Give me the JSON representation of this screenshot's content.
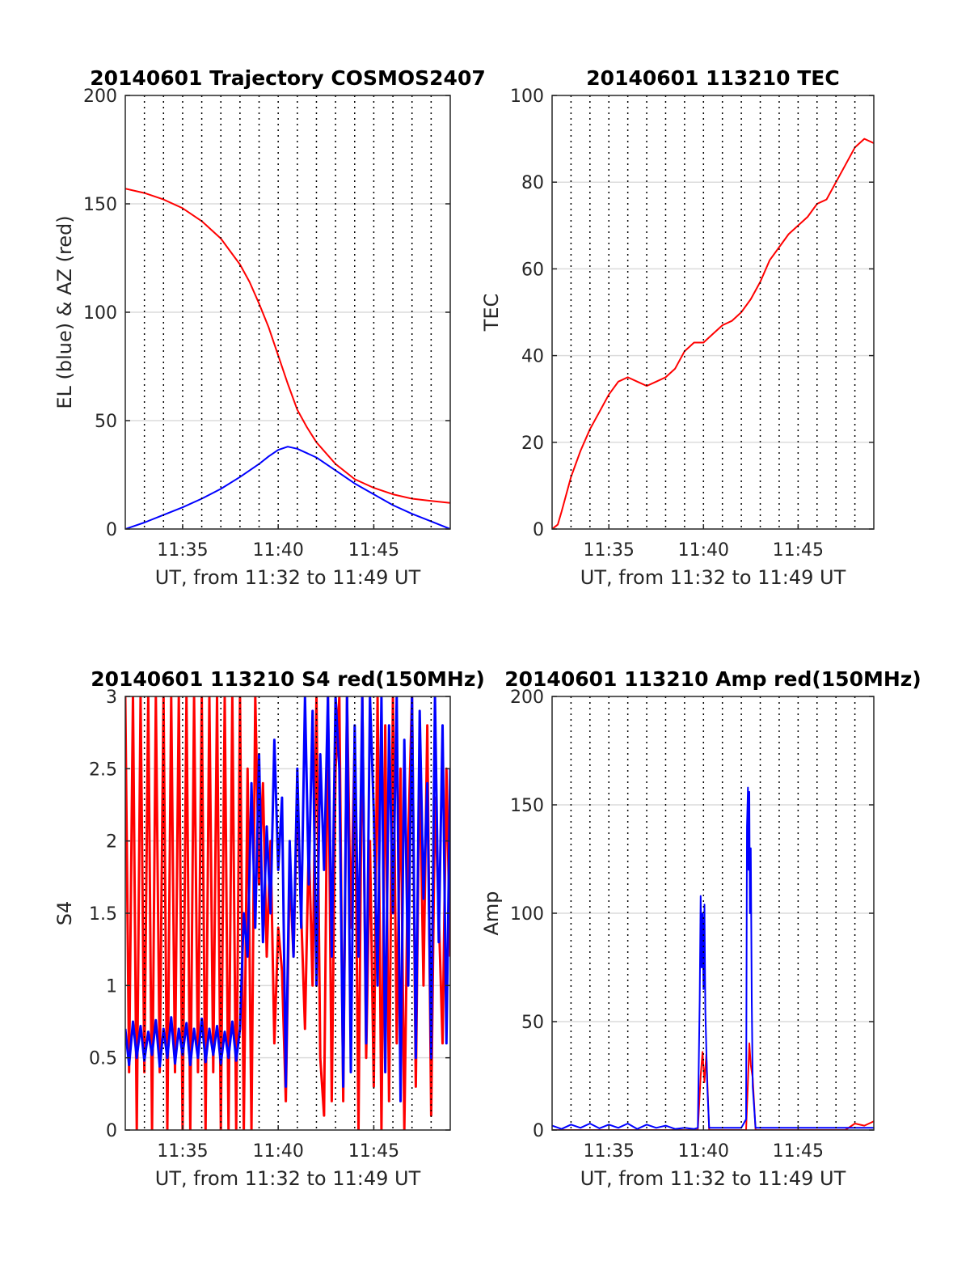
{
  "chart_data": [
    {
      "id": "p1",
      "type": "line",
      "title": "20140601 Trajectory COSMOS2407",
      "xlabel": "UT, from 11:32 to 11:49 UT",
      "ylabel": "EL (blue) & AZ (red)",
      "xlim": [
        0,
        17
      ],
      "ylim": [
        0,
        200
      ],
      "x_ticks": [
        3,
        8,
        13
      ],
      "x_tick_labels": [
        "11:35",
        "11:40",
        "11:45"
      ],
      "y_ticks": [
        0,
        50,
        100,
        150,
        200
      ],
      "y_tick_labels": [
        "0",
        "50",
        "100",
        "150",
        "200"
      ],
      "vgrid_minutes": [
        1,
        2,
        3,
        4,
        5,
        6,
        7,
        8,
        9,
        10,
        11,
        12,
        13,
        14,
        15,
        16
      ],
      "grid": true,
      "series": [
        {
          "name": "AZ",
          "color": "#ff0000",
          "x": [
            0,
            1,
            2,
            3,
            4,
            5,
            6,
            6.5,
            7,
            7.5,
            8,
            8.5,
            9,
            9.5,
            10,
            11,
            12,
            13,
            14,
            15,
            16,
            17
          ],
          "y": [
            157,
            155,
            152,
            148,
            142,
            134,
            122,
            114,
            104,
            93,
            80,
            67,
            55,
            47,
            40,
            30,
            23,
            19,
            16,
            14,
            13,
            12
          ]
        },
        {
          "name": "EL",
          "color": "#0000ff",
          "x": [
            0,
            1,
            2,
            3,
            4,
            5,
            6,
            7,
            7.5,
            8,
            8.5,
            9,
            10,
            11,
            12,
            13,
            14,
            15,
            16,
            17
          ],
          "y": [
            0,
            3,
            6.5,
            10,
            14,
            18.5,
            24,
            30,
            33.5,
            36.5,
            38,
            37,
            33,
            27,
            21,
            16,
            11,
            7,
            3.5,
            0
          ]
        }
      ]
    },
    {
      "id": "p2",
      "type": "line",
      "title": "20140601 113210 TEC",
      "xlabel": "UT, from 11:32 to 11:49 UT",
      "ylabel": "TEC",
      "xlim": [
        0,
        17
      ],
      "ylim": [
        0,
        100
      ],
      "x_ticks": [
        3,
        8,
        13
      ],
      "x_tick_labels": [
        "11:35",
        "11:40",
        "11:45"
      ],
      "y_ticks": [
        0,
        20,
        40,
        60,
        80,
        100
      ],
      "y_tick_labels": [
        "0",
        "20",
        "40",
        "60",
        "80",
        "100"
      ],
      "vgrid_minutes": [
        1,
        2,
        3,
        4,
        5,
        6,
        7,
        8,
        9,
        10,
        11,
        12,
        13,
        14,
        15,
        16
      ],
      "grid": true,
      "series": [
        {
          "name": "TEC",
          "color": "#ff0000",
          "x": [
            0,
            0.3,
            0.5,
            1,
            1.5,
            2,
            2.5,
            3,
            3.5,
            4,
            4.5,
            5,
            5.5,
            6,
            6.5,
            7,
            7.5,
            8,
            8.5,
            9,
            9.5,
            10,
            10.5,
            11,
            11.5,
            12,
            12.5,
            13,
            13.5,
            14,
            14.5,
            15,
            15.5,
            16,
            16.5,
            17
          ],
          "y": [
            0,
            1,
            4,
            12,
            18,
            23,
            27,
            31,
            34,
            35,
            34,
            33,
            34,
            35,
            37,
            41,
            43,
            43,
            45,
            47,
            48,
            50,
            53,
            57,
            62,
            65,
            68,
            70,
            72,
            75,
            76,
            80,
            84,
            88,
            90,
            89
          ]
        }
      ]
    },
    {
      "id": "p3",
      "type": "line",
      "title": "20140601 113210 S4 red(150MHz)",
      "xlabel": "UT, from 11:32 to 11:49 UT",
      "ylabel": "S4",
      "xlim": [
        0,
        17
      ],
      "ylim": [
        0,
        3
      ],
      "x_ticks": [
        3,
        8,
        13
      ],
      "x_tick_labels": [
        "11:35",
        "11:40",
        "11:45"
      ],
      "y_ticks": [
        0,
        0.5,
        1,
        1.5,
        2,
        2.5,
        3
      ],
      "y_tick_labels": [
        "0",
        "0.5",
        "1",
        "1.5",
        "2",
        "2.5",
        "3"
      ],
      "vgrid_minutes": [
        1,
        2,
        3,
        4,
        5,
        6,
        7,
        8,
        9,
        10,
        11,
        12,
        13,
        14,
        15,
        16
      ],
      "grid": true,
      "series": [
        {
          "name": "S4 red",
          "color": "#ff0000",
          "x": [
            0,
            0.2,
            0.4,
            0.6,
            0.8,
            1.0,
            1.2,
            1.4,
            1.6,
            1.8,
            2.0,
            2.2,
            2.4,
            2.6,
            2.8,
            3.0,
            3.2,
            3.4,
            3.6,
            3.8,
            4.0,
            4.2,
            4.4,
            4.6,
            4.8,
            5.0,
            5.2,
            5.4,
            5.6,
            5.8,
            6.0,
            6.2,
            6.4,
            6.6,
            6.8,
            7.0,
            7.2,
            7.4,
            7.6,
            7.8,
            8.0,
            8.2,
            8.4,
            8.6,
            8.8,
            9.0,
            9.2,
            9.4,
            9.6,
            9.8,
            10.0,
            10.2,
            10.4,
            10.6,
            10.8,
            11.0,
            11.2,
            11.4,
            11.6,
            11.8,
            12.0,
            12.2,
            12.4,
            12.6,
            12.8,
            13.0,
            13.2,
            13.4,
            13.6,
            13.8,
            14.0,
            14.2,
            14.4,
            14.6,
            14.8,
            15.0,
            15.2,
            15.4,
            15.6,
            15.8,
            16.0,
            16.2,
            16.4,
            16.6,
            16.8,
            17.0
          ],
          "y": [
            3,
            0.4,
            3,
            0,
            3,
            0.4,
            3,
            0,
            3,
            0.4,
            3,
            0,
            3,
            0.4,
            3,
            0,
            3,
            0,
            3,
            0.4,
            3,
            0,
            3,
            0.4,
            3,
            0,
            3,
            0,
            3,
            0,
            3,
            0,
            2.5,
            0,
            3,
            1.7,
            2.4,
            1.2,
            2,
            0.6,
            1.4,
            1.1,
            0.2,
            1.8,
            1.2,
            2.3,
            1.5,
            0.7,
            2.0,
            1.0,
            3,
            0.5,
            0.1,
            3,
            0.2,
            2.5,
            3,
            0.2,
            3,
            1.4,
            2.7,
            0,
            3,
            0.5,
            2.0,
            0.3,
            3,
            0,
            2.8,
            0.2,
            3,
            0.6,
            2.5,
            0,
            2.0,
            3,
            0.3,
            2.6,
            1.0,
            2.8,
            0.1,
            2.3,
            1.5,
            0.6,
            2.5,
            1.2
          ]
        },
        {
          "name": "S4 blue",
          "color": "#0000ff",
          "x": [
            0,
            0.2,
            0.4,
            0.6,
            0.8,
            1.0,
            1.2,
            1.4,
            1.6,
            1.8,
            2.0,
            2.2,
            2.4,
            2.6,
            2.8,
            3.0,
            3.2,
            3.4,
            3.6,
            3.8,
            4.0,
            4.2,
            4.4,
            4.6,
            4.8,
            5.0,
            5.2,
            5.4,
            5.6,
            5.8,
            6.0,
            6.2,
            6.4,
            6.6,
            6.8,
            7.0,
            7.2,
            7.4,
            7.6,
            7.8,
            8.0,
            8.2,
            8.4,
            8.6,
            8.8,
            9.0,
            9.2,
            9.4,
            9.6,
            9.8,
            10.0,
            10.2,
            10.4,
            10.6,
            10.8,
            11.0,
            11.2,
            11.4,
            11.6,
            11.8,
            12.0,
            12.2,
            12.4,
            12.6,
            12.8,
            13.0,
            13.2,
            13.4,
            13.6,
            13.8,
            14.0,
            14.2,
            14.4,
            14.6,
            14.8,
            15.0,
            15.2,
            15.4,
            15.6,
            15.8,
            16.0,
            16.2,
            16.4,
            16.6,
            16.8,
            17.0
          ],
          "y": [
            0.7,
            0.45,
            0.75,
            0.5,
            0.72,
            0.48,
            0.68,
            0.52,
            0.76,
            0.44,
            0.7,
            0.5,
            0.78,
            0.46,
            0.7,
            0.52,
            0.74,
            0.45,
            0.7,
            0.5,
            0.77,
            0.47,
            0.7,
            0.52,
            0.72,
            0.46,
            0.68,
            0.5,
            0.75,
            0.48,
            0.7,
            1.5,
            1.2,
            2.4,
            1.4,
            2.6,
            1.3,
            2.1,
            1.5,
            2.7,
            1.8,
            2.3,
            0.3,
            2.0,
            1.2,
            2.5,
            1.4,
            3,
            1.7,
            2.9,
            1.0,
            2.6,
            1.8,
            3,
            1.2,
            3,
            2.5,
            0.3,
            3,
            0.4,
            2.8,
            1.2,
            3,
            0.6,
            3,
            2.2,
            1.0,
            3,
            0.4,
            2.8,
            1.5,
            3,
            0.2,
            2.7,
            1.0,
            3,
            0.5,
            2.9,
            1.6,
            2.4,
            0.5,
            3,
            1.3,
            2.8,
            0.6,
            2.5
          ]
        }
      ]
    },
    {
      "id": "p4",
      "type": "line",
      "title": "20140601 113210 Amp red(150MHz)",
      "xlabel": "UT, from 11:32 to 11:49 UT",
      "ylabel": "Amp",
      "xlim": [
        0,
        17
      ],
      "ylim": [
        0,
        200
      ],
      "x_ticks": [
        3,
        8,
        13
      ],
      "x_tick_labels": [
        "11:35",
        "11:40",
        "11:45"
      ],
      "y_ticks": [
        0,
        50,
        100,
        150,
        200
      ],
      "y_tick_labels": [
        "0",
        "50",
        "100",
        "150",
        "200"
      ],
      "vgrid_minutes": [
        1,
        2,
        3,
        4,
        5,
        6,
        7,
        8,
        9,
        10,
        11,
        12,
        13,
        14,
        15,
        16
      ],
      "grid": true,
      "series": [
        {
          "name": "Amp red",
          "color": "#ff0000",
          "x": [
            0,
            1,
            2,
            3,
            4,
            5,
            6,
            7,
            7.7,
            7.85,
            7.95,
            8.05,
            8.15,
            8.3,
            9,
            10,
            10.25,
            10.35,
            10.42,
            10.5,
            10.6,
            10.75,
            11,
            12,
            13,
            14,
            15,
            15.5,
            16,
            16.5,
            17
          ],
          "y": [
            0,
            0,
            0,
            0,
            0,
            0,
            0,
            0,
            0,
            25,
            36,
            22,
            35,
            0,
            0,
            0,
            0,
            22,
            40,
            30,
            24,
            0,
            0,
            0,
            0,
            0,
            0,
            0,
            3,
            2,
            4
          ]
        },
        {
          "name": "Amp blue",
          "color": "#0000ff",
          "x": [
            0,
            0.5,
            1,
            1.5,
            2,
            2.5,
            3,
            3.5,
            4,
            4.5,
            5,
            5.5,
            6,
            6.5,
            7,
            7.5,
            7.7,
            7.8,
            7.85,
            7.9,
            7.95,
            8.0,
            8.05,
            8.1,
            8.2,
            8.3,
            9,
            10,
            10.25,
            10.3,
            10.35,
            10.38,
            10.42,
            10.45,
            10.5,
            10.55,
            10.6,
            10.75,
            11,
            12,
            13,
            14,
            15,
            16,
            17
          ],
          "y": [
            2,
            0.5,
            2.5,
            1,
            3,
            0.8,
            2.5,
            1,
            3,
            0.5,
            2.5,
            1,
            2,
            0.5,
            1,
            0.5,
            1,
            60,
            108,
            75,
            100,
            65,
            104,
            55,
            20,
            1,
            1,
            1,
            5,
            140,
            158,
            120,
            156,
            100,
            130,
            60,
            20,
            1,
            1,
            1,
            1,
            1,
            1,
            1,
            1
          ]
        }
      ]
    }
  ]
}
